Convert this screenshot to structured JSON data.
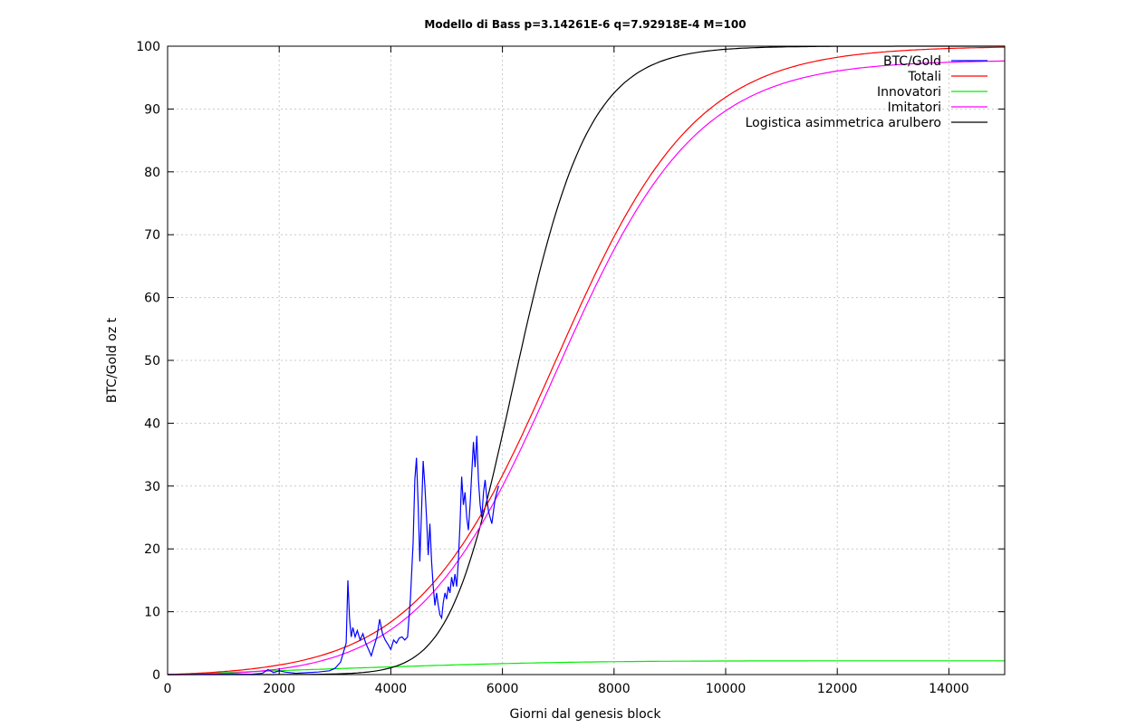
{
  "chart_data": {
    "type": "line",
    "title": "Modello di Bass p=3.14261E-6 q=7.92918E-4 M=100",
    "xlabel": "Giorni dal genesis block",
    "ylabel": "BTC/Gold oz t",
    "xlim": [
      0,
      15000
    ],
    "ylim": [
      0,
      100
    ],
    "xticks": [
      0,
      2000,
      4000,
      6000,
      8000,
      10000,
      12000,
      14000
    ],
    "yticks": [
      0,
      10,
      20,
      30,
      40,
      50,
      60,
      70,
      80,
      90,
      100
    ],
    "grid": true,
    "legend_position": "top-right",
    "series": [
      {
        "name": "BTC/Gold",
        "color": "#0000ff",
        "x": [
          0,
          1500,
          1700,
          1800,
          1900,
          2000,
          2100,
          2300,
          2500,
          2700,
          2900,
          3000,
          3100,
          3150,
          3200,
          3230,
          3260,
          3290,
          3320,
          3360,
          3400,
          3450,
          3500,
          3550,
          3600,
          3650,
          3700,
          3750,
          3800,
          3850,
          3900,
          3950,
          4000,
          4050,
          4100,
          4150,
          4200,
          4250,
          4300,
          4350,
          4400,
          4430,
          4460,
          4490,
          4520,
          4550,
          4580,
          4610,
          4640,
          4670,
          4700,
          4730,
          4760,
          4790,
          4820,
          4850,
          4880,
          4910,
          4940,
          4970,
          5000,
          5030,
          5060,
          5090,
          5120,
          5150,
          5180,
          5210,
          5240,
          5270,
          5300,
          5330,
          5360,
          5390,
          5420,
          5450,
          5480,
          5510,
          5540,
          5570,
          5600,
          5630,
          5660,
          5690,
          5720,
          5750,
          5780,
          5810,
          5840,
          5870,
          5900,
          5930
        ],
        "y": [
          0,
          0.05,
          0.2,
          0.8,
          0.3,
          0.6,
          0.4,
          0.2,
          0.3,
          0.4,
          0.6,
          1.0,
          2.0,
          3.5,
          5.0,
          15.0,
          9.0,
          6.0,
          7.5,
          6.0,
          7.0,
          5.5,
          6.5,
          5.0,
          4.0,
          3.0,
          4.5,
          6.0,
          8.8,
          6.5,
          5.5,
          4.8,
          4.0,
          5.5,
          5.0,
          5.8,
          6.0,
          5.5,
          6.0,
          12.0,
          21.0,
          31.0,
          34.5,
          27.0,
          18.0,
          26.0,
          34.0,
          30.0,
          25.0,
          19.0,
          24.0,
          18.0,
          14.0,
          11.0,
          13.0,
          11.0,
          9.5,
          9.0,
          11.5,
          13.0,
          12.0,
          14.0,
          13.0,
          15.5,
          14.0,
          16.0,
          14.0,
          18.0,
          24.0,
          31.5,
          27.0,
          29.0,
          25.0,
          23.0,
          27.0,
          32.0,
          37.0,
          33.0,
          38.0,
          31.0,
          27.0,
          25.0,
          29.0,
          31.0,
          28.0,
          26.0,
          25.0,
          24.0,
          26.0,
          28.0,
          29.0,
          30.0
        ],
        "note_hidden": ""
      },
      {
        "name": "Totali",
        "color": "#ff0000",
        "model": "bass_total"
      },
      {
        "name": "Innovatori",
        "color": "#00ee00",
        "model": "bass_innovators"
      },
      {
        "name": "Imitatori",
        "color": "#ff00ff",
        "model": "bass_imitators"
      },
      {
        "name": "Logistica asimmetrica arulbero",
        "color": "#000000",
        "model": "logistic"
      }
    ]
  }
}
